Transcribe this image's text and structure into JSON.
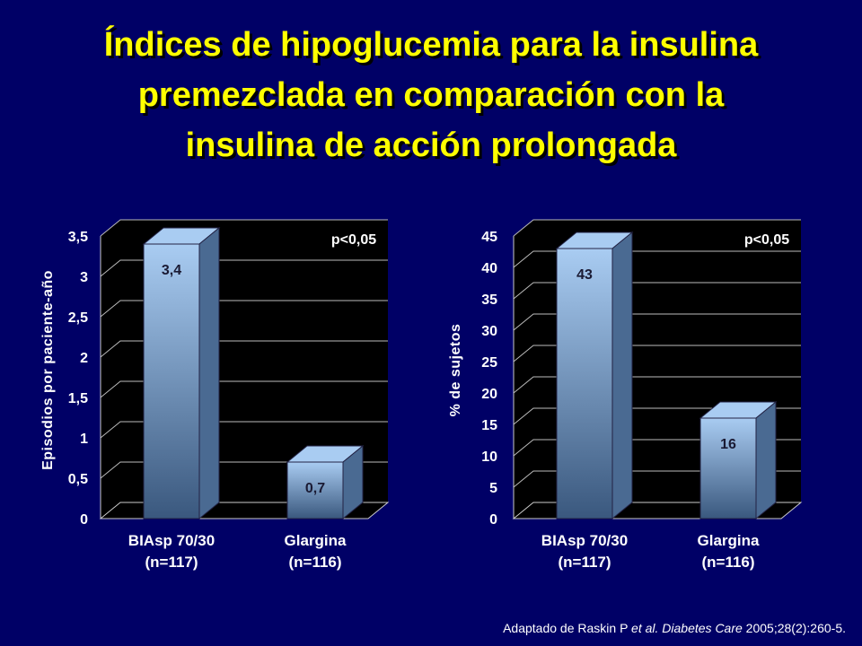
{
  "slide": {
    "title_lines": [
      "Índices de hipoglucemia para la insulina",
      "premezclada en comparación con la",
      "insulina de acción prolongada"
    ],
    "citation_prefix": "Adaptado de Raskin P ",
    "citation_etal": "et al.",
    "citation_journal": "Diabetes Care",
    "citation_suffix": " 2005;28(2):260-5."
  },
  "colors": {
    "background": "#000066",
    "title": "#FFFF00",
    "bar_light": "#a9ccf2",
    "bar_dark": "#3a587e"
  },
  "chart_data": [
    {
      "type": "bar",
      "categories": [
        "BIAsp 70/30\n(n=117)",
        "Glargina\n(n=116)"
      ],
      "values": [
        3.4,
        0.7
      ],
      "value_labels": [
        "3,4",
        "0,7"
      ],
      "ylabel": "Episodios por paciente-año",
      "ylim": [
        0,
        3.5
      ],
      "yticks": [
        "0",
        "0,5",
        "1",
        "1,5",
        "2",
        "2,5",
        "3",
        "3,5"
      ],
      "annotation": "p<0,05",
      "grid": true
    },
    {
      "type": "bar",
      "categories": [
        "BIAsp 70/30\n(n=117)",
        "Glargina\n(n=116)"
      ],
      "values": [
        43,
        16
      ],
      "value_labels": [
        "43",
        "16"
      ],
      "ylabel": "% de sujetos",
      "ylim": [
        0,
        45
      ],
      "yticks": [
        "0",
        "5",
        "10",
        "15",
        "20",
        "25",
        "30",
        "35",
        "40",
        "45"
      ],
      "annotation": "p<0,05",
      "grid": true
    }
  ]
}
